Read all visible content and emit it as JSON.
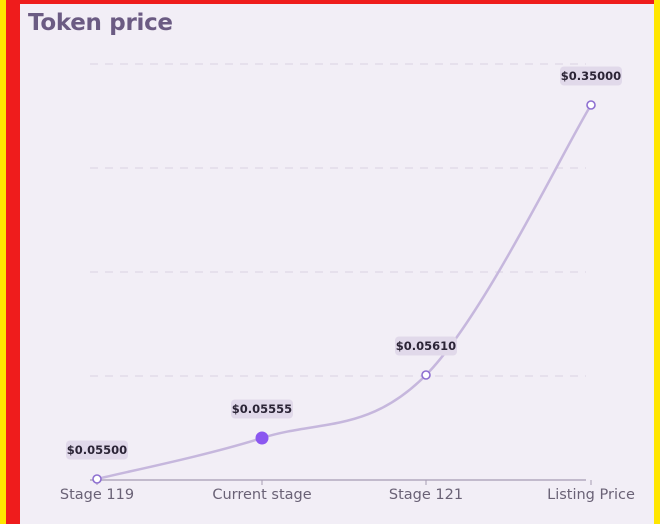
{
  "chart_data": {
    "type": "line",
    "title": "Token price",
    "categories": [
      "Stage 119",
      "Current stage",
      "Stage 121",
      "Listing Price"
    ],
    "values": [
      0.055,
      0.05555,
      0.0561,
      0.35
    ],
    "value_labels": [
      "$0.05500",
      "$0.05555",
      "$0.05610",
      "$0.35000"
    ],
    "highlighted_index": 1,
    "grid": true,
    "legend": "none"
  },
  "colors": {
    "title": "#6b5b83",
    "line": "#c6b7dd",
    "highlight_point": "#8b57f0",
    "point_stroke": "#8e6fd1",
    "label_background": "#e1d9ea",
    "card_background": "#f2eef6"
  }
}
